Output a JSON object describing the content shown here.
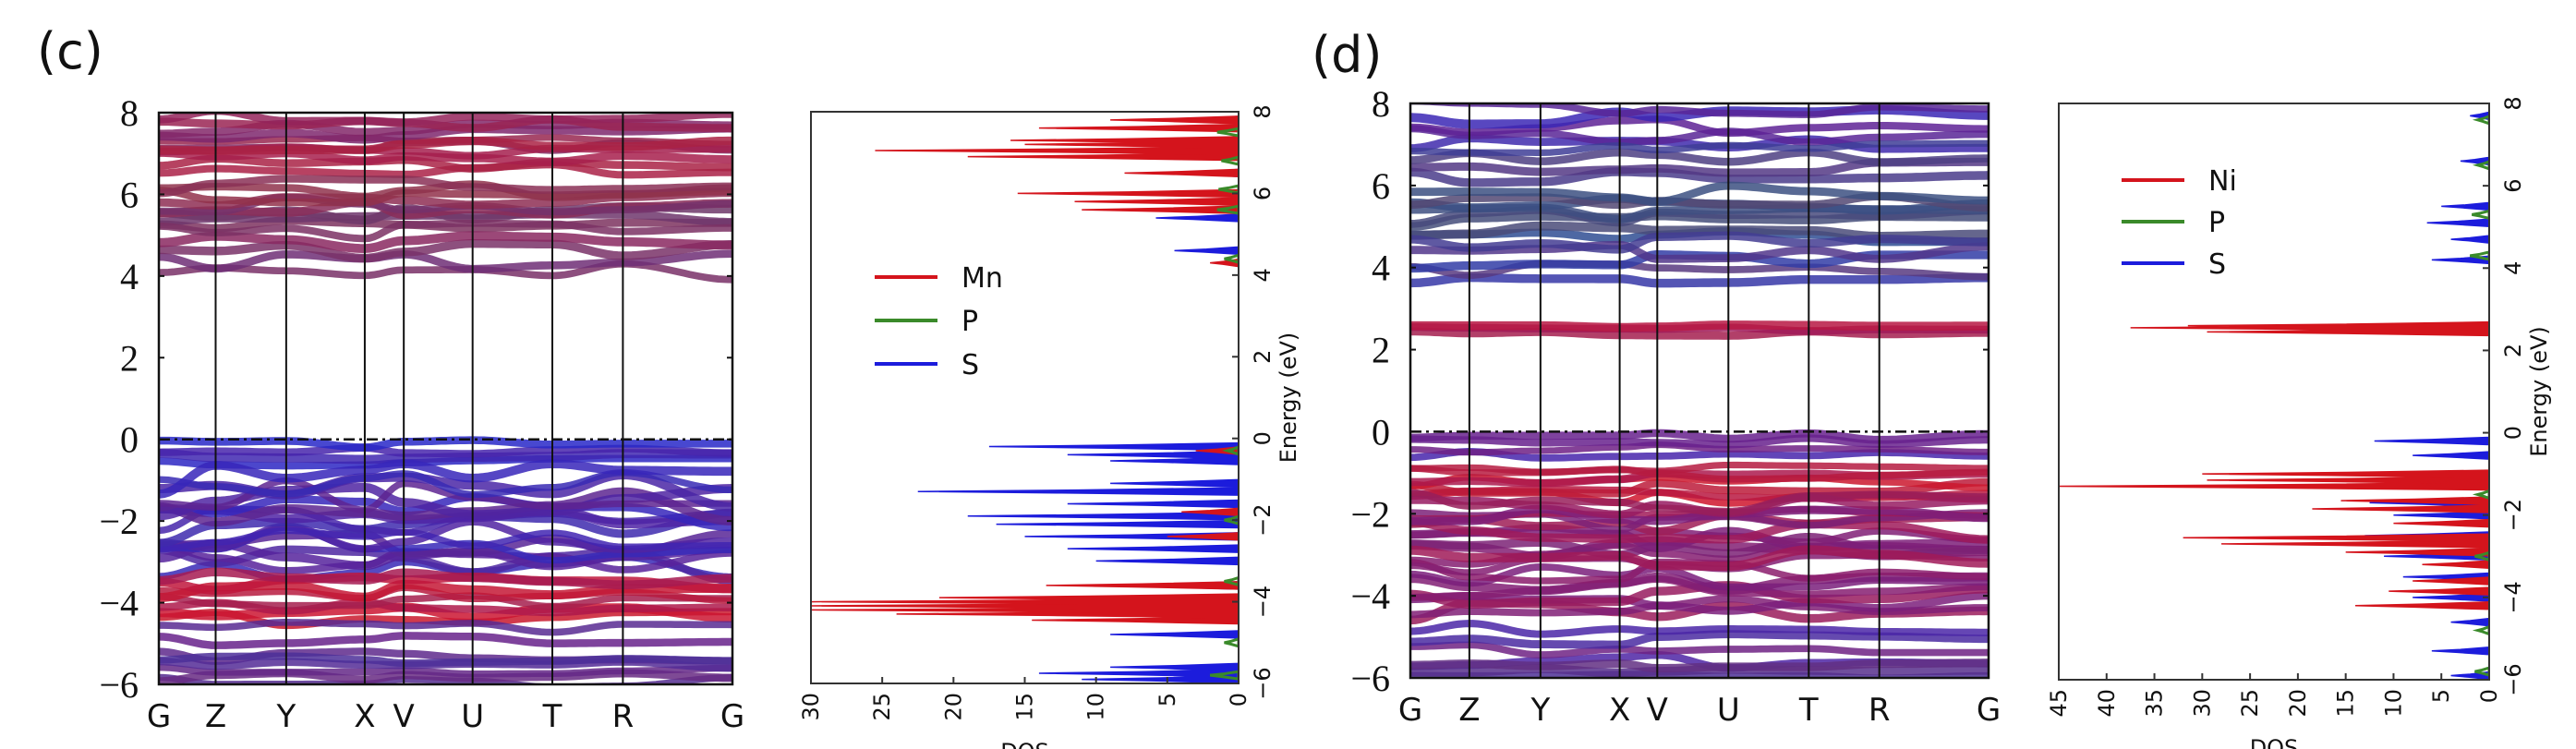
{
  "chart_data": [
    {
      "id": "c-bands",
      "panel_label": "(c)",
      "type": "line",
      "title": "",
      "xlabel": "",
      "ylabel": "",
      "ylim": [
        -6,
        8
      ],
      "yticks": [
        8,
        6,
        4,
        2,
        0,
        -2,
        -4,
        -6
      ],
      "ytick_labels": [
        "8",
        "6",
        "4",
        "2",
        "0",
        "−2",
        "−4",
        "−6"
      ],
      "kpoints": [
        "G",
        "Z",
        "Y",
        "X",
        "V",
        "U",
        "T",
        "R",
        "G"
      ],
      "kpoint_positions": [
        0,
        0.099,
        0.222,
        0.359,
        0.427,
        0.547,
        0.686,
        0.809,
        1.0
      ],
      "fermi_level": 0,
      "legend_colors": {
        "metal": "#d4141c",
        "P": "#3a8a2a",
        "S": "#1c1cdc"
      },
      "band_groups": [
        {
          "range": [
            7.2,
            7.9
          ],
          "count": 6,
          "mix": [
            0.6,
            0.1,
            0.3
          ]
        },
        {
          "range": [
            6.6,
            7.2
          ],
          "count": 5,
          "mix": [
            0.8,
            0.05,
            0.15
          ]
        },
        {
          "range": [
            5.3,
            6.2
          ],
          "count": 9,
          "mix": [
            0.5,
            0.2,
            0.3
          ]
        },
        {
          "range": [
            4.1,
            5.1
          ],
          "count": 5,
          "mix": [
            0.45,
            0.15,
            0.4
          ]
        },
        {
          "range": [
            -0.55,
            -0.1
          ],
          "count": 4,
          "mix": [
            0.05,
            0.0,
            0.95
          ]
        },
        {
          "range": [
            -3.2,
            -1.0
          ],
          "count": 18,
          "mix": [
            0.2,
            0.0,
            0.8
          ]
        },
        {
          "range": [
            -4.4,
            -3.4
          ],
          "count": 8,
          "mix": [
            0.85,
            0.0,
            0.15
          ]
        },
        {
          "range": [
            -5.3,
            -4.6
          ],
          "count": 3,
          "mix": [
            0.25,
            0.05,
            0.7
          ]
        },
        {
          "range": [
            -5.95,
            -5.4
          ],
          "count": 5,
          "mix": [
            0.25,
            0.1,
            0.65
          ]
        }
      ]
    },
    {
      "id": "c-dos",
      "type": "area",
      "title": "",
      "xlabel": "DOS",
      "ylabel": "Energy (eV)",
      "xlim": [
        30,
        0
      ],
      "ylim": [
        -6,
        8
      ],
      "xticks": [
        30,
        25,
        20,
        15,
        10,
        5,
        0
      ],
      "yticks": [
        -6,
        -4,
        -2,
        0,
        2,
        4,
        6,
        8
      ],
      "ytick_labels": [
        "−6",
        "−4",
        "−2",
        "0",
        "2",
        "4",
        "6",
        "8"
      ],
      "legend": {
        "position": "center-left",
        "entries": [
          {
            "label": "Mn",
            "color": "#d4141c"
          },
          {
            "label": "P",
            "color": "#3a8a2a"
          },
          {
            "label": "S",
            "color": "#1c1cdc"
          }
        ]
      },
      "series": [
        {
          "name": "S",
          "color": "#1c1cdc",
          "peaks": [
            [
              -5.9,
              11
            ],
            [
              -5.75,
              14
            ],
            [
              -5.6,
              9
            ],
            [
              -4.8,
              9
            ],
            [
              -4.3,
              16
            ],
            [
              -4.1,
              16
            ],
            [
              -3.6,
              10
            ],
            [
              -3.0,
              10
            ],
            [
              -2.7,
              12
            ],
            [
              -2.4,
              15
            ],
            [
              -2.1,
              17
            ],
            [
              -1.9,
              19
            ],
            [
              -1.6,
              12
            ],
            [
              -1.3,
              22.5
            ],
            [
              -1.1,
              9
            ],
            [
              -0.55,
              9
            ],
            [
              -0.4,
              12
            ],
            [
              -0.2,
              17.5
            ],
            [
              4.6,
              4.5
            ],
            [
              5.4,
              5.8
            ],
            [
              5.8,
              6
            ],
            [
              6.5,
              4
            ],
            [
              7.2,
              3
            ],
            [
              7.8,
              3
            ]
          ]
        },
        {
          "name": "Mn",
          "color": "#d4141c",
          "peaks": [
            [
              -4.45,
              14.5
            ],
            [
              -4.3,
              24
            ],
            [
              -4.2,
              30
            ],
            [
              -4.1,
              30
            ],
            [
              -4.0,
              30
            ],
            [
              -3.9,
              21
            ],
            [
              -3.6,
              13.5
            ],
            [
              -2.4,
              5
            ],
            [
              -1.8,
              4
            ],
            [
              -0.3,
              3
            ],
            [
              4.3,
              2
            ],
            [
              5.6,
              11
            ],
            [
              5.8,
              11.5
            ],
            [
              6.0,
              15.5
            ],
            [
              6.5,
              8
            ],
            [
              6.9,
              19
            ],
            [
              7.05,
              25.5
            ],
            [
              7.2,
              15
            ],
            [
              7.3,
              16
            ],
            [
              7.6,
              14
            ],
            [
              7.8,
              9
            ]
          ]
        },
        {
          "name": "P",
          "color": "#3a8a2a",
          "peaks": [
            [
              -5.8,
              2
            ],
            [
              -5.0,
              1
            ],
            [
              -3.5,
              1
            ],
            [
              -2.0,
              1
            ],
            [
              -0.3,
              0.8
            ],
            [
              4.4,
              1
            ],
            [
              5.6,
              1.5
            ],
            [
              6.1,
              1.4
            ],
            [
              6.8,
              1.2
            ],
            [
              7.5,
              1.5
            ]
          ]
        }
      ]
    },
    {
      "id": "d-bands",
      "panel_label": "(d)",
      "type": "line",
      "title": "",
      "xlabel": "",
      "ylabel": "",
      "ylim": [
        -6,
        8
      ],
      "yticks": [
        8,
        6,
        4,
        2,
        0,
        -2,
        -4,
        -6
      ],
      "ytick_labels": [
        "8",
        "6",
        "4",
        "2",
        "0",
        "−2",
        "−4",
        "−6"
      ],
      "kpoints": [
        "G",
        "Z",
        "Y",
        "X",
        "V",
        "U",
        "T",
        "R",
        "G"
      ],
      "kpoint_positions": [
        0,
        0.102,
        0.225,
        0.362,
        0.427,
        0.55,
        0.689,
        0.811,
        1.0
      ],
      "fermi_level": 0,
      "band_groups": [
        {
          "range": [
            7.0,
            7.9
          ],
          "count": 5,
          "mix": [
            0.2,
            0.0,
            0.8
          ]
        },
        {
          "range": [
            6.2,
            6.9
          ],
          "count": 4,
          "mix": [
            0.15,
            0.25,
            0.6
          ]
        },
        {
          "range": [
            4.8,
            5.8
          ],
          "count": 8,
          "mix": [
            0.1,
            0.4,
            0.5
          ]
        },
        {
          "range": [
            3.7,
            4.6
          ],
          "count": 5,
          "mix": [
            0.15,
            0.2,
            0.65
          ]
        },
        {
          "range": [
            2.4,
            2.6
          ],
          "count": 3,
          "mix": [
            0.75,
            0.0,
            0.25
          ]
        },
        {
          "range": [
            -0.55,
            -0.1
          ],
          "count": 4,
          "mix": [
            0.3,
            0.0,
            0.7
          ]
        },
        {
          "range": [
            -1.6,
            -0.9
          ],
          "count": 7,
          "mix": [
            0.85,
            0.0,
            0.15
          ]
        },
        {
          "range": [
            -3.0,
            -1.7
          ],
          "count": 12,
          "mix": [
            0.6,
            0.0,
            0.4
          ]
        },
        {
          "range": [
            -4.4,
            -3.1
          ],
          "count": 10,
          "mix": [
            0.6,
            0.0,
            0.4
          ]
        },
        {
          "range": [
            -5.6,
            -4.8
          ],
          "count": 4,
          "mix": [
            0.3,
            0.05,
            0.65
          ]
        },
        {
          "range": [
            -5.95,
            -5.7
          ],
          "count": 3,
          "mix": [
            0.2,
            0.15,
            0.65
          ]
        }
      ]
    },
    {
      "id": "d-dos",
      "type": "area",
      "title": "",
      "xlabel": "DOS",
      "ylabel": "Energy (eV)",
      "xlim": [
        45,
        0
      ],
      "ylim": [
        -6,
        8
      ],
      "xticks": [
        45,
        40,
        35,
        30,
        25,
        20,
        15,
        10,
        5,
        0
      ],
      "yticks": [
        -6,
        -4,
        -2,
        0,
        2,
        4,
        6,
        8
      ],
      "ytick_labels": [
        "−6",
        "−4",
        "−2",
        "0",
        "2",
        "4",
        "6",
        "8"
      ],
      "legend": {
        "position": "upper-left",
        "entries": [
          {
            "label": "Ni",
            "color": "#d4141c"
          },
          {
            "label": "P",
            "color": "#3a8a2a"
          },
          {
            "label": "S",
            "color": "#1c1cdc"
          }
        ]
      },
      "series": [
        {
          "name": "S",
          "color": "#1c1cdc",
          "peaks": [
            [
              -5.9,
              4
            ],
            [
              -5.3,
              6
            ],
            [
              -4.6,
              4
            ],
            [
              -4.0,
              8
            ],
            [
              -3.5,
              9
            ],
            [
              -3.0,
              11
            ],
            [
              -2.5,
              13
            ],
            [
              -2.0,
              10
            ],
            [
              -1.7,
              12.5
            ],
            [
              -1.3,
              10
            ],
            [
              -0.55,
              8
            ],
            [
              -0.2,
              12
            ],
            [
              2.5,
              9.5
            ],
            [
              4.2,
              6
            ],
            [
              4.7,
              4
            ],
            [
              5.1,
              6.5
            ],
            [
              5.5,
              5
            ],
            [
              6.6,
              3
            ],
            [
              7.7,
              2
            ]
          ]
        },
        {
          "name": "Ni",
          "color": "#d4141c",
          "peaks": [
            [
              -4.2,
              14
            ],
            [
              -3.85,
              10.5
            ],
            [
              -3.6,
              8
            ],
            [
              -3.2,
              7
            ],
            [
              -2.9,
              15
            ],
            [
              -2.7,
              28
            ],
            [
              -2.55,
              32
            ],
            [
              -2.2,
              10
            ],
            [
              -1.85,
              18.5
            ],
            [
              -1.65,
              15.5
            ],
            [
              -1.3,
              45
            ],
            [
              -1.15,
              29.5
            ],
            [
              -1.0,
              30
            ],
            [
              2.45,
              29.5
            ],
            [
              2.55,
              37.5
            ],
            [
              2.6,
              31.5
            ]
          ]
        },
        {
          "name": "P",
          "color": "#3a8a2a",
          "peaks": [
            [
              -5.8,
              1.5
            ],
            [
              -4.8,
              1.2
            ],
            [
              -3.0,
              1.5
            ],
            [
              -1.5,
              1.2
            ],
            [
              4.3,
              2
            ],
            [
              5.3,
              1.8
            ],
            [
              6.5,
              1.2
            ],
            [
              7.6,
              1.2
            ]
          ]
        }
      ]
    }
  ]
}
